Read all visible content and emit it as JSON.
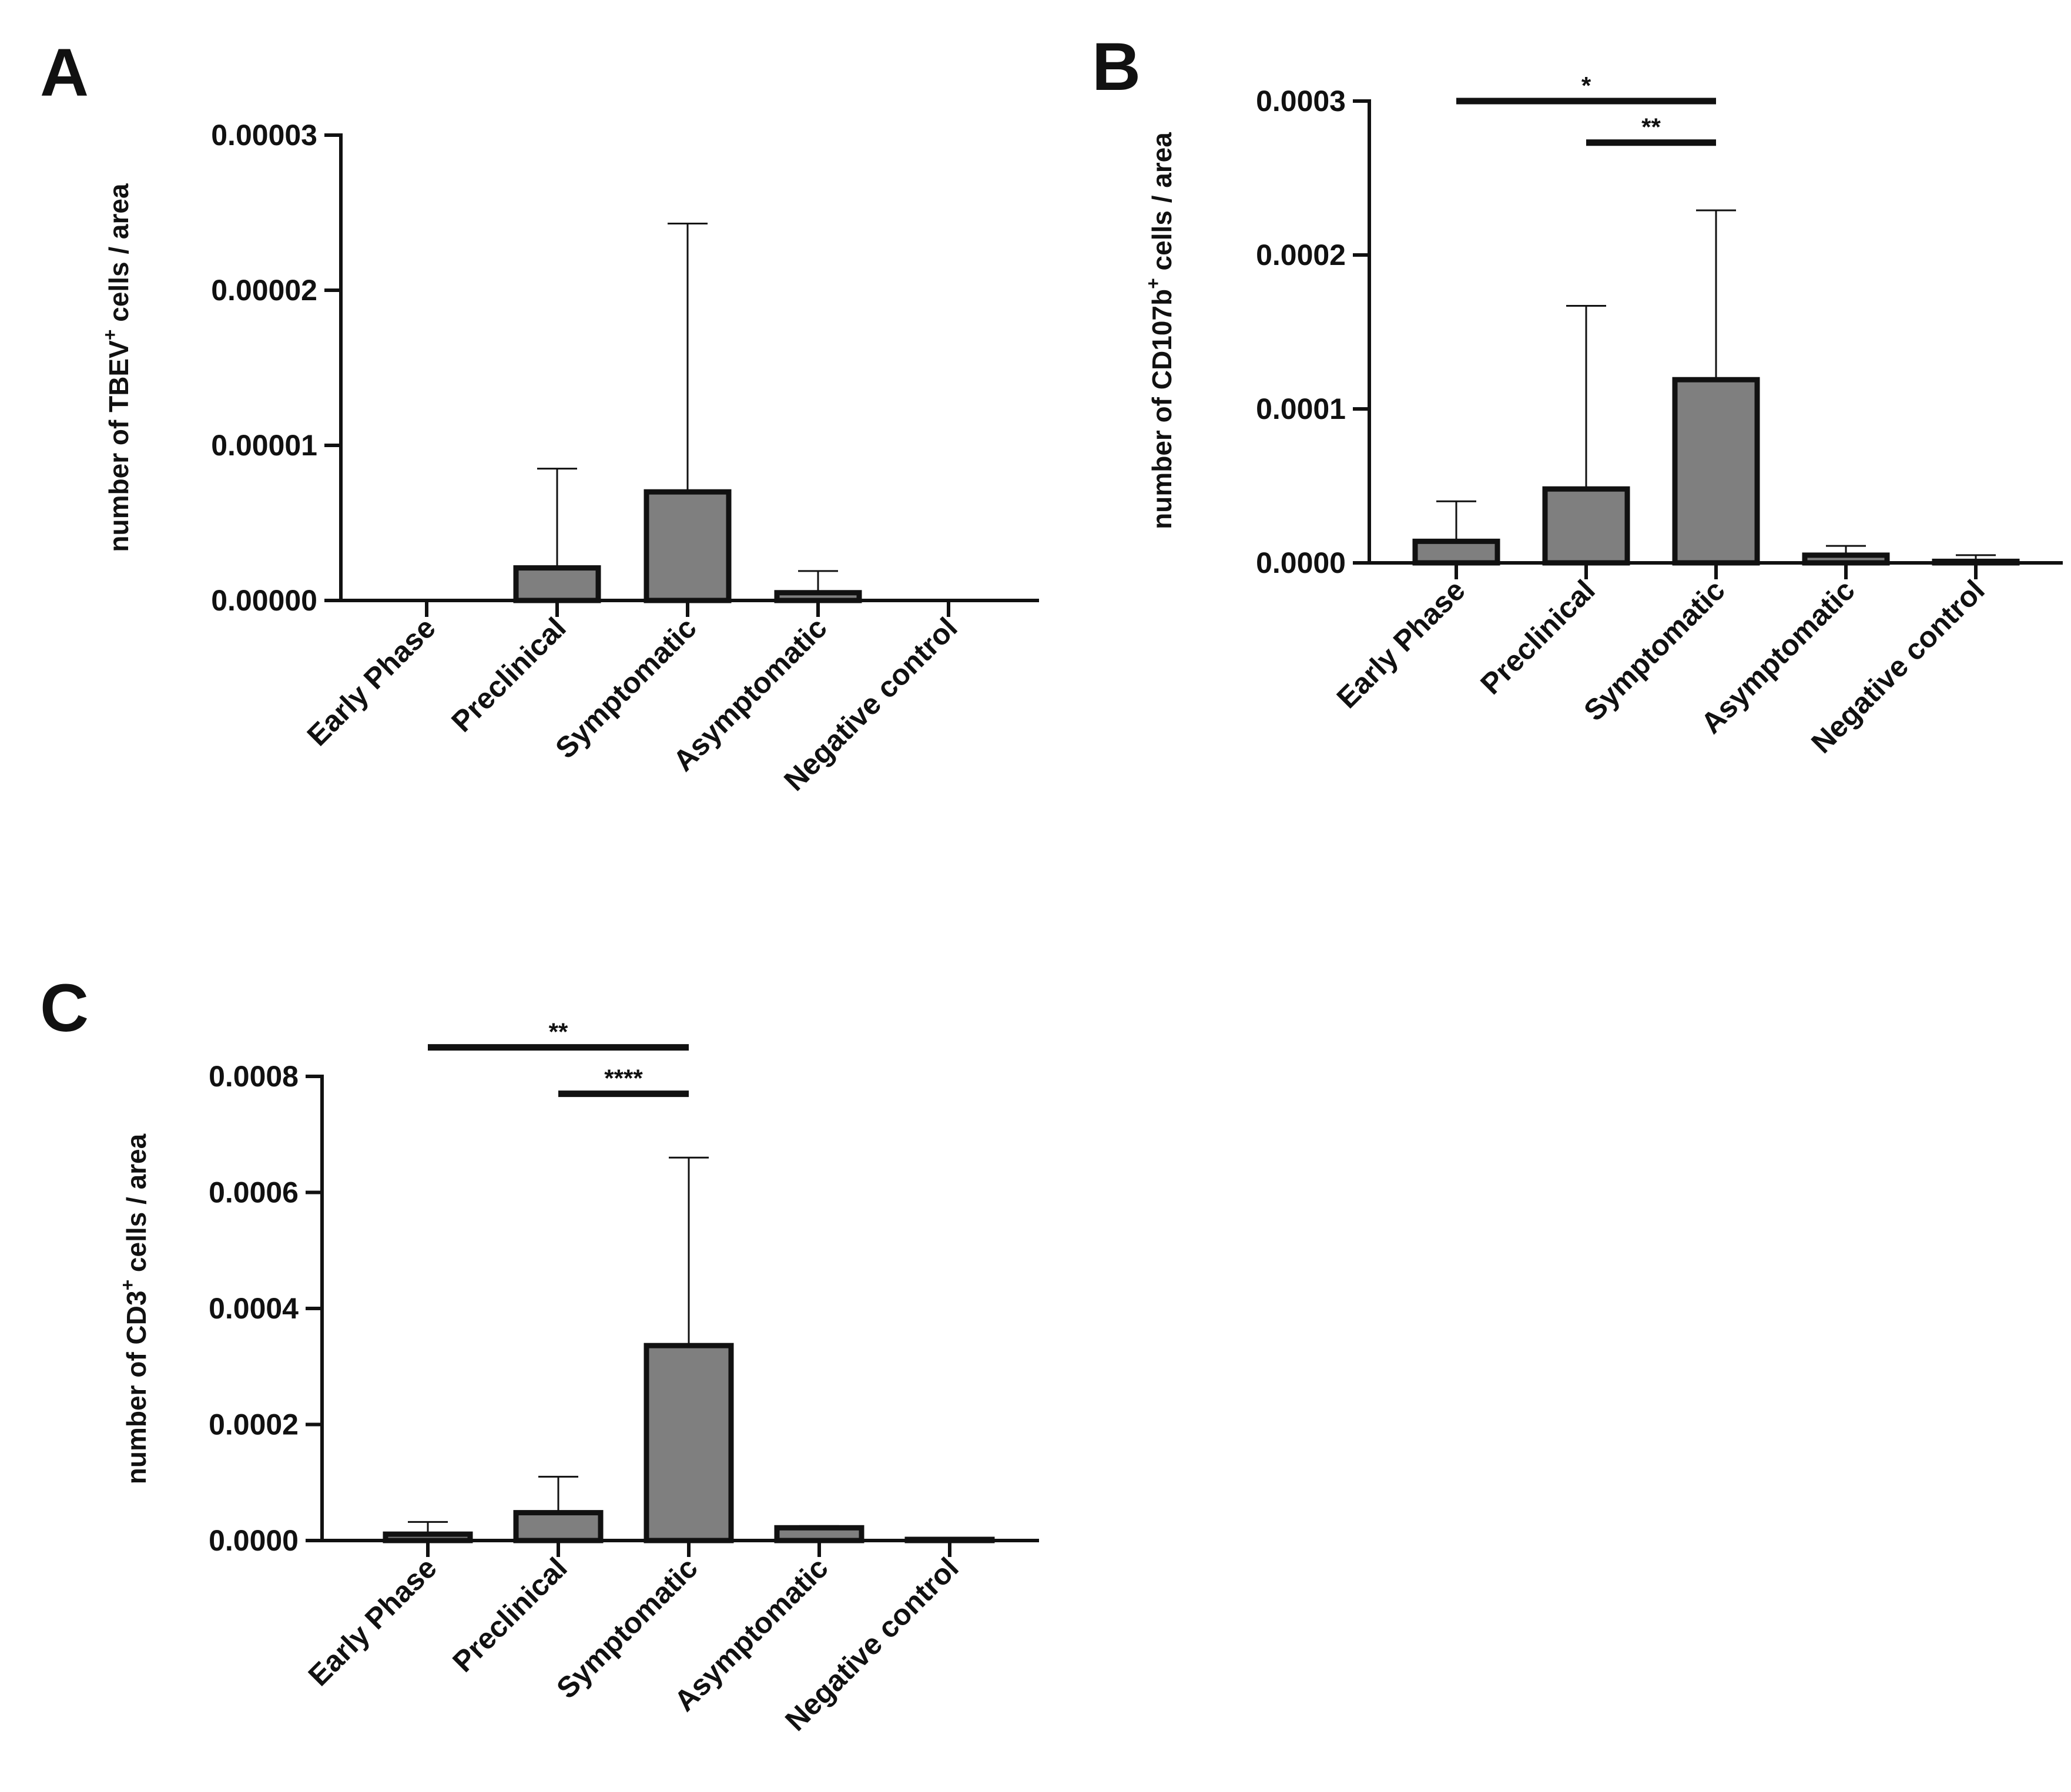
{
  "colors": {
    "bar_fill": "#7f7f7f",
    "ink": "#111111",
    "background": "#ffffff"
  },
  "chart_data": [
    {
      "panel": "A",
      "type": "bar",
      "ylabel": {
        "prefix": "number of TBEV",
        "sup": "+",
        "suffix": " cells / area"
      },
      "categories": [
        "Early Phase",
        "Preclinical",
        "Symptomatic",
        "Asymptomatic",
        "Negative control"
      ],
      "values": [
        0,
        2.1e-06,
        7e-06,
        5e-07,
        0
      ],
      "error_upper": [
        0,
        8.5e-06,
        2.43e-05,
        1.9e-06,
        0
      ],
      "ylim": [
        0,
        3e-05
      ],
      "yticks": [
        0,
        1e-05,
        2e-05,
        3e-05
      ],
      "ytick_labels": [
        "0.00000",
        "0.00001",
        "0.00002",
        "0.00003"
      ],
      "significance": []
    },
    {
      "panel": "B",
      "type": "bar",
      "ylabel": {
        "prefix": "number of CD107b",
        "sup": "+",
        "suffix": " cells / area"
      },
      "categories": [
        "Early Phase",
        "Preclinical",
        "Symptomatic",
        "Asymptomatic",
        "Negative control"
      ],
      "values": [
        1.4e-05,
        4.8e-05,
        0.000119,
        5e-06,
        1e-06
      ],
      "error_upper": [
        4e-05,
        0.000167,
        0.000229,
        1.1e-05,
        5e-06
      ],
      "ylim": [
        0,
        0.0003
      ],
      "yticks": [
        0,
        0.0001,
        0.0002,
        0.0003
      ],
      "ytick_labels": [
        "0.0000",
        "0.0001",
        "0.0002",
        "0.0003"
      ],
      "significance": [
        {
          "from": 0,
          "to": 2,
          "label": "*",
          "y": 0.0003
        },
        {
          "from": 1,
          "to": 2,
          "label": "**",
          "y": 0.000273
        }
      ]
    },
    {
      "panel": "C",
      "type": "bar",
      "ylabel": {
        "prefix": "number of CD3",
        "sup": "+",
        "suffix": " cells / area"
      },
      "categories": [
        "Early Phase",
        "Preclinical",
        "Symptomatic",
        "Asymptomatic",
        "Negative control"
      ],
      "values": [
        1.1e-05,
        4.8e-05,
        0.000336,
        2.2e-05,
        2e-06
      ],
      "error_upper": [
        3.2e-05,
        0.00011,
        0.00066,
        2.5e-05,
        4e-06
      ],
      "ylim": [
        0,
        0.0008
      ],
      "yticks": [
        0,
        0.0002,
        0.0004,
        0.0006,
        0.0008
      ],
      "ytick_labels": [
        "0.0000",
        "0.0002",
        "0.0004",
        "0.0006",
        "0.0008"
      ],
      "significance": [
        {
          "from": 0,
          "to": 2,
          "label": "**",
          "y": 0.00085
        },
        {
          "from": 1,
          "to": 2,
          "label": "****",
          "y": 0.00077
        }
      ]
    }
  ]
}
